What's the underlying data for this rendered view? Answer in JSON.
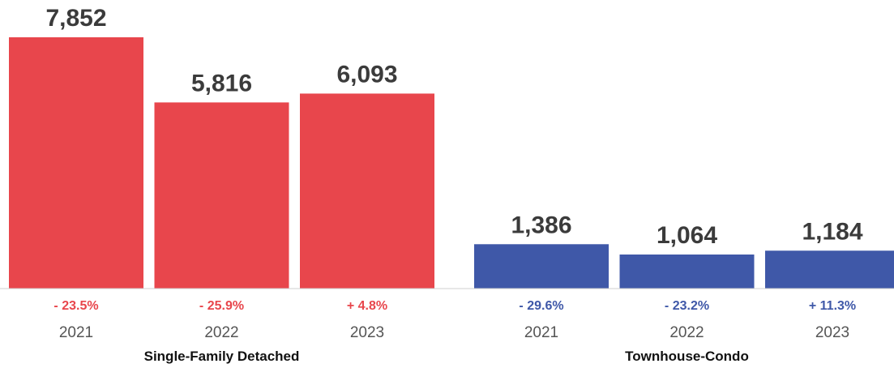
{
  "chart_data": {
    "type": "bar",
    "groups": [
      {
        "name": "Single-Family Detached",
        "color": "#e8464c",
        "bars": [
          {
            "category": "2021",
            "value": 7852,
            "value_label": "7,852",
            "change": "- 23.5%"
          },
          {
            "category": "2022",
            "value": 5816,
            "value_label": "5,816",
            "change": "- 25.9%"
          },
          {
            "category": "2023",
            "value": 6093,
            "value_label": "6,093",
            "change": "+ 4.8%"
          }
        ]
      },
      {
        "name": "Townhouse-Condo",
        "color": "#3f58a8",
        "bars": [
          {
            "category": "2021",
            "value": 1386,
            "value_label": "1,386",
            "change": "- 29.6%"
          },
          {
            "category": "2022",
            "value": 1064,
            "value_label": "1,064",
            "change": "- 23.2%"
          },
          {
            "category": "2023",
            "value": 1184,
            "value_label": "1,184",
            "change": "+ 11.3%"
          }
        ]
      }
    ],
    "ylim": [
      0,
      7852
    ],
    "grid": false,
    "legend": "none"
  }
}
